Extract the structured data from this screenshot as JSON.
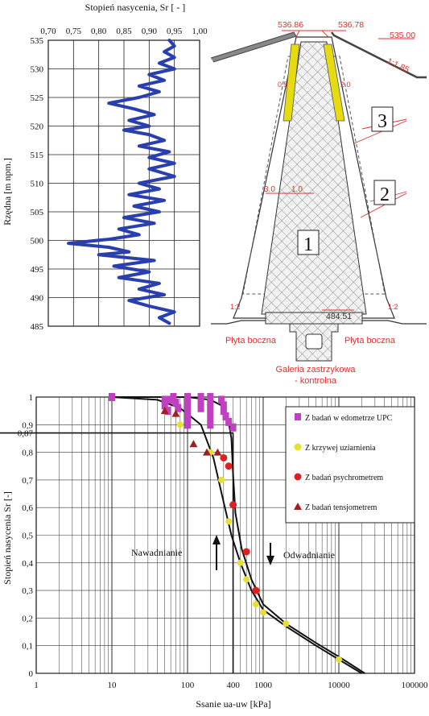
{
  "chart_data": [
    {
      "type": "line",
      "title": "Stopień nasycenia, Sr [ - ]",
      "xlabel": "Stopień nasycenia, Sr [ - ]",
      "ylabel": "Rzędna [m npm.]",
      "xticks": [
        "0,70",
        "0,75",
        "0,80",
        "0,85",
        "0,90",
        "0,95",
        "1,00"
      ],
      "yticks": [
        "485",
        "490",
        "495",
        "500",
        "505",
        "510",
        "515",
        "520",
        "525",
        "530",
        "535"
      ],
      "xlim": [
        0.7,
        1.0
      ],
      "ylim": [
        485,
        535
      ],
      "grid": true,
      "series": [
        {
          "color": "#2a3fae",
          "points": [
            [
              0.94,
              485.5
            ],
            [
              0.92,
              486.5
            ],
            [
              0.95,
              487.5
            ],
            [
              0.9,
              488.5
            ],
            [
              0.86,
              489.5
            ],
            [
              0.93,
              490.5
            ],
            [
              0.88,
              491.5
            ],
            [
              0.92,
              492.5
            ],
            [
              0.84,
              493.5
            ],
            [
              0.9,
              494.5
            ],
            [
              0.83,
              495.5
            ],
            [
              0.91,
              496.5
            ],
            [
              0.8,
              497.5
            ],
            [
              0.86,
              498
            ],
            [
              0.82,
              498.8
            ],
            [
              0.74,
              499.5
            ],
            [
              0.82,
              500.2
            ],
            [
              0.88,
              501
            ],
            [
              0.84,
              502
            ],
            [
              0.91,
              503
            ],
            [
              0.85,
              504
            ],
            [
              0.92,
              505
            ],
            [
              0.87,
              506
            ],
            [
              0.93,
              507
            ],
            [
              0.86,
              508
            ],
            [
              0.92,
              509
            ],
            [
              0.88,
              510
            ],
            [
              0.95,
              511.2
            ],
            [
              0.9,
              512.5
            ],
            [
              0.95,
              513.5
            ],
            [
              0.9,
              514.5
            ],
            [
              0.94,
              515.5
            ],
            [
              0.88,
              516.5
            ],
            [
              0.93,
              517.5
            ],
            [
              0.9,
              518.5
            ],
            [
              0.85,
              519.3
            ],
            [
              0.9,
              520
            ],
            [
              0.86,
              521
            ],
            [
              0.91,
              522
            ],
            [
              0.87,
              523
            ],
            [
              0.82,
              524
            ],
            [
              0.88,
              525
            ],
            [
              0.92,
              526
            ],
            [
              0.88,
              527
            ],
            [
              0.93,
              528
            ],
            [
              0.9,
              529
            ],
            [
              0.95,
              530
            ],
            [
              0.92,
              531
            ],
            [
              0.95,
              532
            ],
            [
              0.93,
              533
            ],
            [
              0.95,
              534
            ],
            [
              0.94,
              535
            ]
          ]
        }
      ]
    },
    {
      "type": "scatter",
      "xlabel": "Ssanie ua-uw [kPa]",
      "ylabel": "Stopień nasycenia Sr [-]",
      "xscale": "log",
      "xlim": [
        1,
        100000
      ],
      "ylim": [
        0,
        1
      ],
      "xticks": [
        "1",
        "10",
        "100",
        "400",
        "1000",
        "10000",
        "100000"
      ],
      "yticks": [
        "0",
        "0,1",
        "0,2",
        "0,3",
        "0,4",
        "0,5",
        "0,6",
        "0,7",
        "0,8",
        "0,87",
        "0,9",
        "1"
      ],
      "grid": true,
      "legend": "top-right",
      "series": [
        {
          "name": "Z badań w edometrze UPC",
          "marker": "square",
          "color": "#c040c0",
          "points": [
            [
              10,
              1
            ],
            [
              50,
              0.99
            ],
            [
              50,
              0.97
            ],
            [
              55,
              0.95
            ],
            [
              60,
              0.99
            ],
            [
              65,
              1.0
            ],
            [
              70,
              0.98
            ],
            [
              75,
              0.96
            ],
            [
              100,
              1.0
            ],
            [
              100,
              0.98
            ],
            [
              100,
              0.96
            ],
            [
              100,
              0.94
            ],
            [
              100,
              0.92
            ],
            [
              100,
              0.9
            ],
            [
              150,
              1.0
            ],
            [
              150,
              0.98
            ],
            [
              150,
              0.96
            ],
            [
              200,
              1.0
            ],
            [
              200,
              0.98
            ],
            [
              200,
              0.96
            ],
            [
              200,
              0.94
            ],
            [
              200,
              0.92
            ],
            [
              200,
              0.9
            ],
            [
              280,
              0.99
            ],
            [
              300,
              0.97
            ],
            [
              300,
              0.95
            ],
            [
              320,
              0.93
            ],
            [
              350,
              0.91
            ],
            [
              400,
              0.89
            ]
          ]
        },
        {
          "name": "Z krzywej uziarnienia",
          "marker": "circle",
          "color": "#e8e030",
          "points": [
            [
              80,
              0.9
            ],
            [
              200,
              0.8
            ],
            [
              280,
              0.7
            ],
            [
              350,
              0.55
            ],
            [
              500,
              0.4
            ],
            [
              600,
              0.34
            ],
            [
              800,
              0.25
            ],
            [
              1000,
              0.22
            ],
            [
              2000,
              0.18
            ],
            [
              10000,
              0.05
            ]
          ]
        },
        {
          "name": "Z badań psychrometrem",
          "marker": "circle",
          "color": "#e02020",
          "points": [
            [
              300,
              0.78
            ],
            [
              350,
              0.75
            ],
            [
              400,
              0.61
            ],
            [
              600,
              0.44
            ],
            [
              800,
              0.3
            ]
          ]
        },
        {
          "name": "Z badań tensjometrem",
          "marker": "triangle",
          "color": "#a02020",
          "points": [
            [
              50,
              0.95
            ],
            [
              70,
              0.94
            ],
            [
              120,
              0.83
            ],
            [
              180,
              0.8
            ],
            [
              250,
              0.8
            ]
          ]
        }
      ],
      "annotations": [
        "Nawadnianie",
        "Odwadnianie"
      ]
    }
  ],
  "diagram": {
    "elevations": [
      "536.86",
      "536.78",
      "535.00",
      "484.51"
    ],
    "slope_label": "1:1.85",
    "dims": [
      "3.0",
      "1.0",
      "0.5",
      "2.0"
    ],
    "zone_labels": [
      "1",
      "2",
      "3"
    ],
    "toe_labels": [
      "1:2",
      "1:2"
    ],
    "plate_left": "Płyta boczna",
    "plate_right": "Płyta boczna",
    "gallery_line1": "Galeria zastrzykowa",
    "gallery_line2": "- kontrolna"
  }
}
